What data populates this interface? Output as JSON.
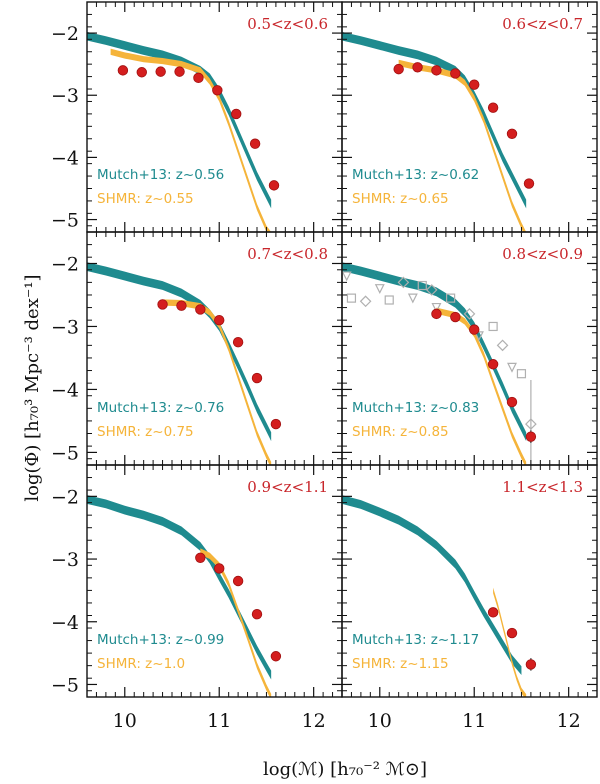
{
  "colors": {
    "teal": "#1f8b8f",
    "orange": "#f5b43a",
    "red": "#d41e1e",
    "gray": "#b0b0b0",
    "zlabel": "#c8262b",
    "axis": "#111111"
  },
  "axes": {
    "xlabel": "log(ℳ)   [h₇₀⁻² ℳ⊙]",
    "ylabel": "log(Φ)   [h₇₀³ Mpc⁻³ dex⁻¹]",
    "xticks": [
      "10",
      "11",
      "12"
    ],
    "yticks": [
      "−2",
      "−3",
      "−4",
      "−5"
    ],
    "xlim": [
      9.6,
      12.3
    ],
    "ylim": [
      -5.2,
      -1.5
    ]
  },
  "chart_data": [
    {
      "type": "scatter",
      "title": "0.5<z<0.6",
      "labels": {
        "teal": "Mutch+13: z~0.56",
        "orange": "SHMR: z~0.55"
      },
      "teal_band": {
        "x": [
          9.6,
          9.8,
          10.0,
          10.2,
          10.4,
          10.6,
          10.8,
          10.9,
          11.0,
          11.1,
          11.2,
          11.3,
          11.4,
          11.5,
          11.55
        ],
        "y": [
          -2.05,
          -2.12,
          -2.2,
          -2.28,
          -2.35,
          -2.45,
          -2.6,
          -2.72,
          -2.95,
          -3.25,
          -3.6,
          -3.95,
          -4.3,
          -4.6,
          -4.75
        ],
        "width": 0.07
      },
      "orange_band": {
        "x": [
          9.85,
          10.0,
          10.2,
          10.4,
          10.6,
          10.8,
          10.9,
          11.0,
          11.1,
          11.2,
          11.3,
          11.4,
          11.5,
          11.55
        ],
        "y": [
          -2.3,
          -2.36,
          -2.42,
          -2.45,
          -2.5,
          -2.6,
          -2.78,
          -3.05,
          -3.45,
          -3.9,
          -4.35,
          -4.8,
          -5.15,
          -5.25
        ],
        "width": 0.05
      },
      "red_points": {
        "x": [
          9.98,
          10.18,
          10.38,
          10.58,
          10.78,
          10.98,
          11.18,
          11.38,
          11.58
        ],
        "y": [
          -2.6,
          -2.63,
          -2.62,
          -2.62,
          -2.72,
          -2.92,
          -3.3,
          -3.78,
          -4.45
        ],
        "err": [
          0,
          0,
          0,
          0,
          0,
          0,
          0,
          0,
          0.06
        ]
      },
      "gray_points": []
    },
    {
      "type": "scatter",
      "title": "0.6<z<0.7",
      "labels": {
        "teal": "Mutch+13: z~0.62",
        "orange": "SHMR: z~0.65"
      },
      "teal_band": {
        "x": [
          9.6,
          9.8,
          10.0,
          10.2,
          10.4,
          10.6,
          10.8,
          10.9,
          11.0,
          11.1,
          11.2,
          11.3,
          11.4,
          11.5,
          11.55
        ],
        "y": [
          -2.05,
          -2.12,
          -2.2,
          -2.28,
          -2.35,
          -2.45,
          -2.6,
          -2.75,
          -3.0,
          -3.3,
          -3.65,
          -4.0,
          -4.3,
          -4.6,
          -4.75
        ],
        "width": 0.07
      },
      "orange_band": {
        "x": [
          10.2,
          10.4,
          10.6,
          10.8,
          10.9,
          11.0,
          11.1,
          11.2,
          11.3,
          11.4,
          11.5,
          11.55
        ],
        "y": [
          -2.48,
          -2.55,
          -2.6,
          -2.68,
          -2.8,
          -3.05,
          -3.4,
          -3.85,
          -4.3,
          -4.75,
          -5.1,
          -5.25
        ],
        "width": 0.05
      },
      "red_points": {
        "x": [
          10.2,
          10.4,
          10.6,
          10.8,
          11.0,
          11.2,
          11.4,
          11.58
        ],
        "y": [
          -2.58,
          -2.55,
          -2.6,
          -2.65,
          -2.83,
          -3.2,
          -3.62,
          -4.42
        ],
        "err": [
          0,
          0,
          0,
          0,
          0,
          0,
          0,
          0.07
        ]
      },
      "gray_points": []
    },
    {
      "type": "scatter",
      "title": "0.7<z<0.8",
      "labels": {
        "teal": "Mutch+13: z~0.76",
        "orange": "SHMR: z~0.75"
      },
      "teal_band": {
        "x": [
          9.6,
          9.8,
          10.0,
          10.2,
          10.4,
          10.6,
          10.8,
          10.9,
          11.0,
          11.1,
          11.2,
          11.3,
          11.4,
          11.5,
          11.55
        ],
        "y": [
          -2.05,
          -2.12,
          -2.2,
          -2.28,
          -2.35,
          -2.47,
          -2.65,
          -2.8,
          -3.0,
          -3.3,
          -3.62,
          -3.95,
          -4.3,
          -4.6,
          -4.75
        ],
        "width": 0.07
      },
      "orange_band": {
        "x": [
          10.4,
          10.6,
          10.8,
          10.9,
          11.0,
          11.1,
          11.2,
          11.3,
          11.4,
          11.5,
          11.55
        ],
        "y": [
          -2.62,
          -2.63,
          -2.68,
          -2.78,
          -2.98,
          -3.35,
          -3.8,
          -4.25,
          -4.7,
          -5.05,
          -5.2
        ],
        "width": 0.05
      },
      "red_points": {
        "x": [
          10.4,
          10.6,
          10.8,
          11.0,
          11.2,
          11.4,
          11.6
        ],
        "y": [
          -2.65,
          -2.67,
          -2.73,
          -2.9,
          -3.25,
          -3.82,
          -4.55
        ],
        "err": [
          0,
          0,
          0,
          0,
          0,
          0,
          0.08
        ]
      },
      "gray_points": []
    },
    {
      "type": "scatter",
      "title": "0.8<z<0.9",
      "labels": {
        "teal": "Mutch+13: z~0.83",
        "orange": "SHMR: z~0.85"
      },
      "teal_band": {
        "x": [
          9.6,
          9.8,
          10.0,
          10.2,
          10.4,
          10.6,
          10.8,
          10.9,
          11.0,
          11.1,
          11.2,
          11.3,
          11.4,
          11.5,
          11.55
        ],
        "y": [
          -2.05,
          -2.12,
          -2.2,
          -2.28,
          -2.35,
          -2.45,
          -2.63,
          -2.78,
          -3.0,
          -3.3,
          -3.62,
          -3.95,
          -4.3,
          -4.6,
          -4.75
        ],
        "width": 0.07
      },
      "orange_band": {
        "x": [
          10.6,
          10.8,
          10.9,
          11.0,
          11.1,
          11.2,
          11.3,
          11.4,
          11.5,
          11.55
        ],
        "y": [
          -2.75,
          -2.82,
          -2.92,
          -3.12,
          -3.45,
          -3.88,
          -4.3,
          -4.72,
          -5.05,
          -5.2
        ],
        "width": 0.05
      },
      "red_points": {
        "x": [
          10.6,
          10.8,
          11.0,
          11.2,
          11.4,
          11.6
        ],
        "y": [
          -2.8,
          -2.85,
          -3.05,
          -3.6,
          -4.2,
          -4.75
        ],
        "err": [
          0,
          0,
          0,
          0,
          0,
          0.1
        ]
      },
      "gray_points": {
        "x": [
          9.65,
          9.7,
          9.85,
          10.0,
          10.1,
          10.25,
          10.35,
          10.45,
          10.55,
          10.6,
          10.75,
          10.95,
          11.05,
          11.2,
          11.3,
          11.4,
          11.5,
          11.6
        ],
        "y": [
          -2.2,
          -2.55,
          -2.6,
          -2.4,
          -2.58,
          -2.3,
          -2.55,
          -2.35,
          -2.42,
          -2.7,
          -2.55,
          -2.8,
          -3.15,
          -3.0,
          -3.3,
          -3.65,
          -3.75,
          -4.55
        ],
        "err": [
          0,
          0,
          0,
          0,
          0,
          0,
          0,
          0,
          0,
          0,
          0,
          0,
          0,
          0,
          0,
          0,
          0,
          0.7
        ]
      }
    },
    {
      "type": "scatter",
      "title": "0.9<z<1.1",
      "labels": {
        "teal": "Mutch+13: z~0.99",
        "orange": "SHMR: z~1.0"
      },
      "teal_band": {
        "x": [
          9.6,
          9.8,
          10.0,
          10.2,
          10.4,
          10.6,
          10.8,
          10.9,
          11.0,
          11.1,
          11.2,
          11.3,
          11.4,
          11.5,
          11.55
        ],
        "y": [
          -2.05,
          -2.12,
          -2.22,
          -2.3,
          -2.4,
          -2.55,
          -2.8,
          -3.0,
          -3.28,
          -3.55,
          -3.85,
          -4.15,
          -4.45,
          -4.72,
          -4.85
        ],
        "width": 0.07
      },
      "orange_band": {
        "x": [
          10.8,
          10.9,
          11.0,
          11.1,
          11.2,
          11.3,
          11.4,
          11.5,
          11.55
        ],
        "y": [
          -2.88,
          -2.95,
          -3.1,
          -3.4,
          -3.82,
          -4.25,
          -4.7,
          -5.05,
          -5.2
        ],
        "width": 0.05
      },
      "red_points": {
        "x": [
          10.8,
          11.0,
          11.2,
          11.4,
          11.6
        ],
        "y": [
          -2.98,
          -3.15,
          -3.35,
          -3.88,
          -4.55
        ],
        "err": [
          0,
          0,
          0,
          0,
          0.06
        ]
      },
      "gray_points": []
    },
    {
      "type": "scatter",
      "title": "1.1<z<1.3",
      "labels": {
        "teal": "Mutch+13: z~1.17",
        "orange": "SHMR: z~1.15"
      },
      "teal_band": {
        "x": [
          9.6,
          9.8,
          10.0,
          10.2,
          10.4,
          10.6,
          10.8,
          10.9,
          11.0,
          11.1,
          11.2,
          11.3,
          11.4,
          11.5
        ],
        "y": [
          -2.05,
          -2.13,
          -2.25,
          -2.38,
          -2.55,
          -2.78,
          -3.08,
          -3.3,
          -3.58,
          -3.85,
          -4.1,
          -4.35,
          -4.6,
          -4.78
        ],
        "width": 0.07
      },
      "orange_band": {
        "x": [
          11.2,
          11.25,
          11.3,
          11.35,
          11.4,
          11.45,
          11.5,
          11.55
        ],
        "y": [
          -3.5,
          -3.75,
          -4.05,
          -4.35,
          -4.65,
          -4.9,
          -5.1,
          -5.2
        ],
        "width": 0.045
      },
      "red_points": {
        "x": [
          11.2,
          11.4,
          11.6
        ],
        "y": [
          -3.85,
          -4.18,
          -4.68
        ],
        "err": [
          0,
          0.07,
          0.1
        ]
      },
      "gray_points": []
    }
  ]
}
